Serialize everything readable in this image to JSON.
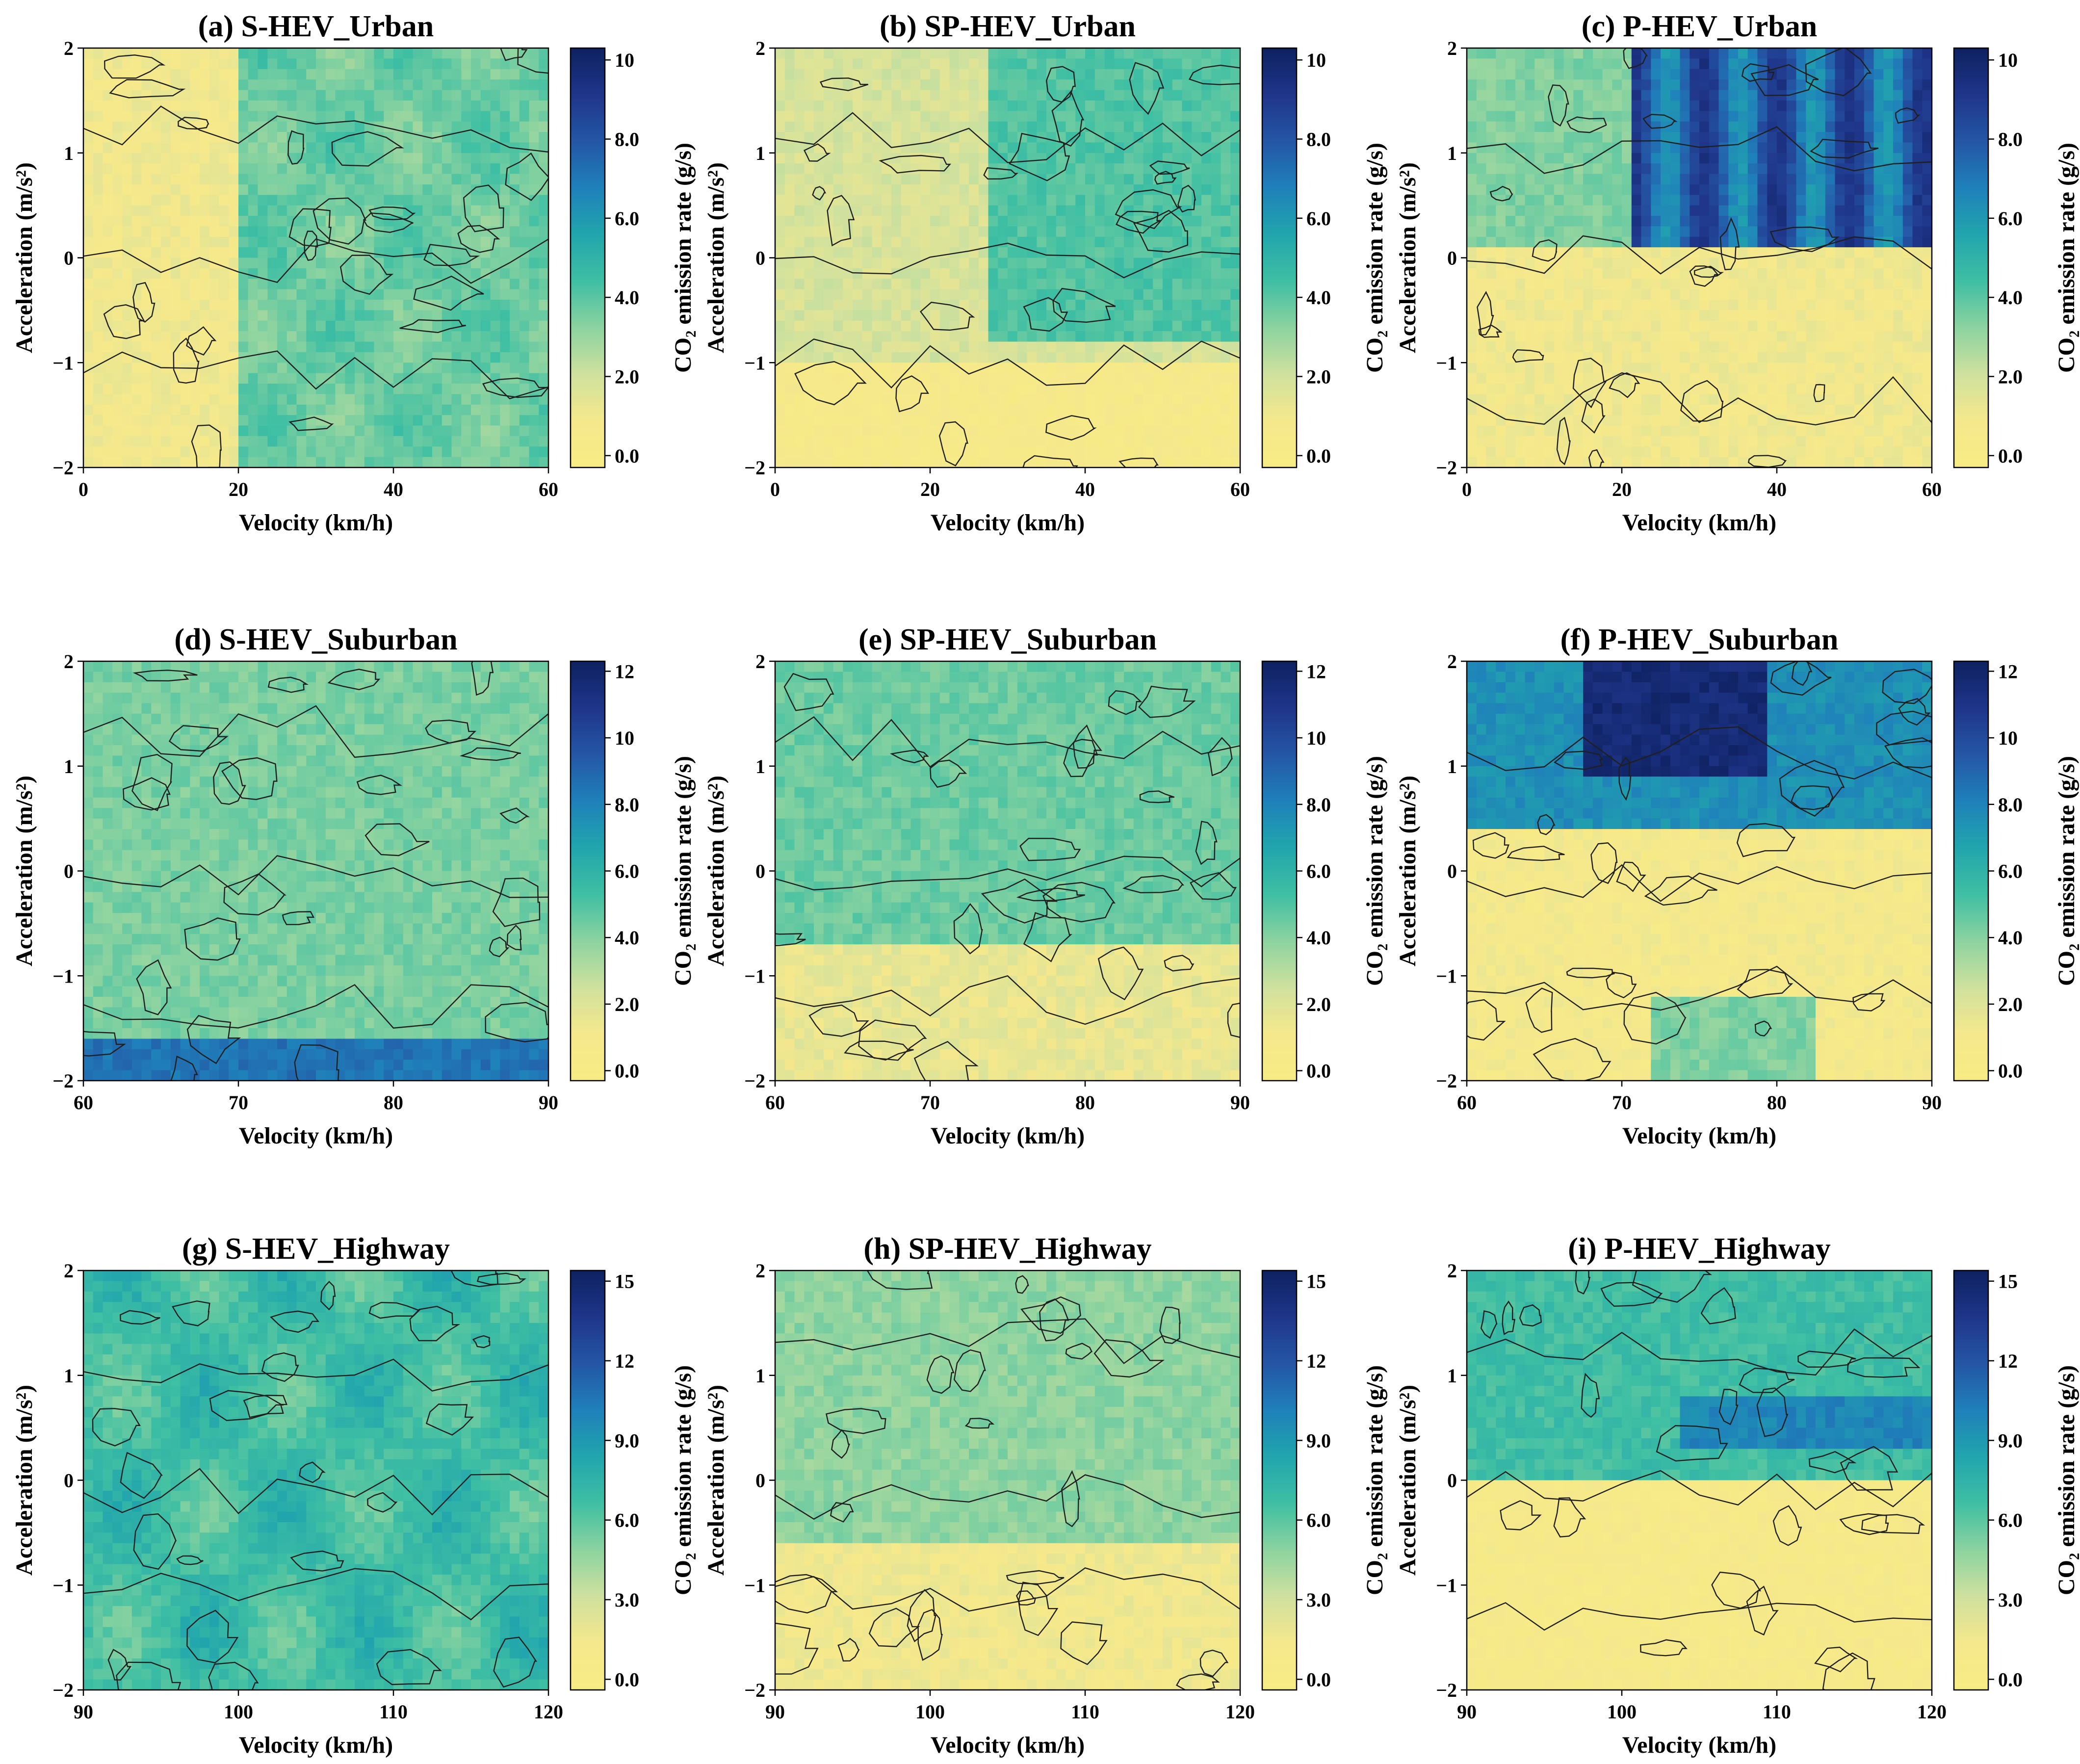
{
  "chart_data": [
    {
      "type": "heatmap",
      "title": "(a) S-HEV_Urban",
      "xlabel": "Velocity (km/h)",
      "ylabel": "Acceleration (m/s²)",
      "colorbar_label": "CO₂ emission rate (g/s)",
      "xlim": [
        0,
        60
      ],
      "ylim": [
        -2,
        2
      ],
      "xticks": [
        "0",
        "20",
        "40",
        "60"
      ],
      "yticks": [
        "2",
        "1",
        "0",
        "−1",
        "−2"
      ],
      "cbar_range": [
        -0.3,
        10.3
      ],
      "cbar_ticks": [
        "0.0",
        "2.0",
        "4.0",
        "6.0",
        "8.0",
        "10"
      ],
      "scenario": "urban",
      "vehicle": "S-HEV",
      "grid": false
    },
    {
      "type": "heatmap",
      "title": "(b) SP-HEV_Urban",
      "xlabel": "Velocity (km/h)",
      "ylabel": "Acceleration (m/s²)",
      "colorbar_label": "CO₂ emission rate (g/s)",
      "xlim": [
        0,
        60
      ],
      "ylim": [
        -2,
        2
      ],
      "xticks": [
        "0",
        "20",
        "40",
        "60"
      ],
      "yticks": [
        "2",
        "1",
        "0",
        "−1",
        "−2"
      ],
      "cbar_range": [
        -0.3,
        10.3
      ],
      "cbar_ticks": [
        "0.0",
        "2.0",
        "4.0",
        "6.0",
        "8.0",
        "10"
      ],
      "scenario": "urban",
      "vehicle": "SP-HEV",
      "grid": false
    },
    {
      "type": "heatmap",
      "title": "(c) P-HEV_Urban",
      "xlabel": "Velocity (km/h)",
      "ylabel": "Acceleration (m/s²)",
      "colorbar_label": "CO₂ emission rate (g/s)",
      "xlim": [
        0,
        60
      ],
      "ylim": [
        -2,
        2
      ],
      "xticks": [
        "0",
        "20",
        "40",
        "60"
      ],
      "yticks": [
        "2",
        "1",
        "0",
        "−1",
        "−2"
      ],
      "cbar_range": [
        -0.3,
        10.3
      ],
      "cbar_ticks": [
        "0.0",
        "2.0",
        "4.0",
        "6.0",
        "8.0",
        "10"
      ],
      "scenario": "urban",
      "vehicle": "P-HEV",
      "grid": false
    },
    {
      "type": "heatmap",
      "title": "(d) S-HEV_Suburban",
      "xlabel": "Velocity (km/h)",
      "ylabel": "Acceleration (m/s²)",
      "colorbar_label": "CO₂ emission rate (g/s)",
      "xlim": [
        60,
        90
      ],
      "ylim": [
        -2,
        2
      ],
      "xticks": [
        "60",
        "70",
        "80",
        "90"
      ],
      "yticks": [
        "2",
        "1",
        "0",
        "−1",
        "−2"
      ],
      "cbar_range": [
        -0.3,
        12.3
      ],
      "cbar_ticks": [
        "0.0",
        "2.0",
        "4.0",
        "6.0",
        "8.0",
        "10",
        "12"
      ],
      "scenario": "suburban",
      "vehicle": "S-HEV",
      "grid": false
    },
    {
      "type": "heatmap",
      "title": "(e) SP-HEV_Suburban",
      "xlabel": "Velocity (km/h)",
      "ylabel": "Acceleration (m/s²)",
      "colorbar_label": "CO₂ emission rate (g/s)",
      "xlim": [
        60,
        90
      ],
      "ylim": [
        -2,
        2
      ],
      "xticks": [
        "60",
        "70",
        "80",
        "90"
      ],
      "yticks": [
        "2",
        "1",
        "0",
        "−1",
        "−2"
      ],
      "cbar_range": [
        -0.3,
        12.3
      ],
      "cbar_ticks": [
        "0.0",
        "2.0",
        "4.0",
        "6.0",
        "8.0",
        "10",
        "12"
      ],
      "scenario": "suburban",
      "vehicle": "SP-HEV",
      "grid": false
    },
    {
      "type": "heatmap",
      "title": "(f) P-HEV_Suburban",
      "xlabel": "Velocity (km/h)",
      "ylabel": "Acceleration (m/s²)",
      "colorbar_label": "CO₂ emission rate (g/s)",
      "xlim": [
        60,
        90
      ],
      "ylim": [
        -2,
        2
      ],
      "xticks": [
        "60",
        "70",
        "80",
        "90"
      ],
      "yticks": [
        "2",
        "1",
        "0",
        "−1",
        "−2"
      ],
      "cbar_range": [
        -0.3,
        12.3
      ],
      "cbar_ticks": [
        "0.0",
        "2.0",
        "4.0",
        "6.0",
        "8.0",
        "10",
        "12"
      ],
      "scenario": "suburban",
      "vehicle": "P-HEV",
      "grid": false
    },
    {
      "type": "heatmap",
      "title": "(g) S-HEV_Highway",
      "xlabel": "Velocity (km/h)",
      "ylabel": "Acceleration (m/s²)",
      "colorbar_label": "CO₂ emission rate (g/s)",
      "xlim": [
        90,
        120
      ],
      "ylim": [
        -2,
        2
      ],
      "xticks": [
        "90",
        "100",
        "110",
        "120"
      ],
      "yticks": [
        "2",
        "1",
        "0",
        "−1",
        "−2"
      ],
      "cbar_range": [
        -0.4,
        15.4
      ],
      "cbar_ticks": [
        "0.0",
        "3.0",
        "6.0",
        "9.0",
        "12",
        "15"
      ],
      "scenario": "highway",
      "vehicle": "S-HEV",
      "grid": false
    },
    {
      "type": "heatmap",
      "title": "(h) SP-HEV_Highway",
      "xlabel": "Velocity (km/h)",
      "ylabel": "Acceleration (m/s²)",
      "colorbar_label": "CO₂ emission rate (g/s)",
      "xlim": [
        90,
        120
      ],
      "ylim": [
        -2,
        2
      ],
      "xticks": [
        "90",
        "100",
        "110",
        "120"
      ],
      "yticks": [
        "2",
        "1",
        "0",
        "−1",
        "−2"
      ],
      "cbar_range": [
        -0.4,
        15.4
      ],
      "cbar_ticks": [
        "0.0",
        "3.0",
        "6.0",
        "9.0",
        "12",
        "15"
      ],
      "scenario": "highway",
      "vehicle": "SP-HEV",
      "grid": false
    },
    {
      "type": "heatmap",
      "title": "(i) P-HEV_Highway",
      "xlabel": "Velocity (km/h)",
      "ylabel": "Acceleration (m/s²)",
      "colorbar_label": "CO₂ emission rate (g/s)",
      "xlim": [
        90,
        120
      ],
      "ylim": [
        -2,
        2
      ],
      "xticks": [
        "90",
        "100",
        "110",
        "120"
      ],
      "yticks": [
        "2",
        "1",
        "0",
        "−1",
        "−2"
      ],
      "cbar_range": [
        -0.4,
        15.4
      ],
      "cbar_ticks": [
        "0.0",
        "3.0",
        "6.0",
        "9.0",
        "12",
        "15"
      ],
      "scenario": "highway",
      "vehicle": "P-HEV",
      "grid": false
    }
  ],
  "colors": {
    "colormap": [
      "#f7ec84",
      "#f5e88c",
      "#cfe19e",
      "#8cd3a0",
      "#3fbfa3",
      "#21a5ad",
      "#1f80ba",
      "#2456a6",
      "#1f3589",
      "#0e2161"
    ],
    "contour": "#1f1f1f",
    "axis": "#000000",
    "background": "#ffffff"
  }
}
